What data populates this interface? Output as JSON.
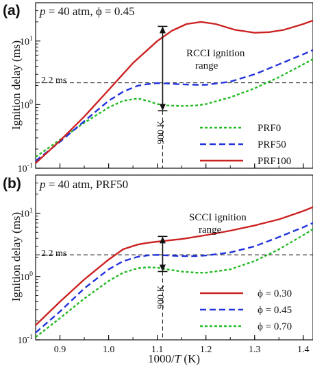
{
  "chart_data": [
    {
      "type": "line",
      "panel_label": "(a)",
      "title": "p = 40 atm, ϕ = 0.45",
      "title_parts": {
        "p": "p",
        "rest": " = 40 atm, ϕ = 0.45"
      },
      "ylabel": "Ignition delay (ms)",
      "y_scale": "log",
      "ylim": [
        0.1,
        40
      ],
      "xlim": [
        0.85,
        1.42
      ],
      "y_ticks": [
        {
          "value": 0.1,
          "mant": "10",
          "exp": "-1"
        },
        {
          "value": 1,
          "mant": "10",
          "exp": "0"
        },
        {
          "value": 10,
          "mant": "10",
          "exp": "1"
        }
      ],
      "hline": {
        "y": 2.2,
        "label": "2.2 ms"
      },
      "vline": {
        "x": 1.111,
        "label": "900 K"
      },
      "annotation": {
        "line1": "RCCI ignition",
        "line2": "range",
        "x": 1.111,
        "y_low": 0.8,
        "y_high": 17
      },
      "legend_position": "lower-right",
      "series": [
        {
          "name": "PRF0",
          "color": "#22bb22",
          "dash": "4,3",
          "x": [
            0.85,
            0.9,
            0.95,
            1.0,
            1.03,
            1.06,
            1.08,
            1.1,
            1.12,
            1.15,
            1.18,
            1.2,
            1.25,
            1.3,
            1.35,
            1.4,
            1.42
          ],
          "y": [
            0.15,
            0.28,
            0.52,
            0.9,
            1.15,
            1.25,
            1.15,
            1.02,
            0.97,
            0.95,
            0.97,
            1.02,
            1.3,
            1.8,
            2.7,
            4.3,
            5.2
          ]
        },
        {
          "name": "PRF50",
          "color": "#2233dd",
          "dash": "9,5",
          "x": [
            0.85,
            0.9,
            0.95,
            1.0,
            1.03,
            1.06,
            1.08,
            1.1,
            1.12,
            1.15,
            1.18,
            1.2,
            1.25,
            1.3,
            1.35,
            1.4,
            1.42
          ],
          "y": [
            0.13,
            0.26,
            0.55,
            1.15,
            1.6,
            1.98,
            2.1,
            2.18,
            2.15,
            2.08,
            2.05,
            2.05,
            2.3,
            3.0,
            4.3,
            6.2,
            7.2
          ]
        },
        {
          "name": "PRF100",
          "color": "#cc2222",
          "dash": "",
          "x": [
            0.85,
            0.9,
            0.95,
            1.0,
            1.05,
            1.1,
            1.13,
            1.16,
            1.19,
            1.22,
            1.26,
            1.3,
            1.33,
            1.36,
            1.4,
            1.42
          ],
          "y": [
            0.12,
            0.27,
            0.65,
            1.7,
            4.5,
            10.0,
            14.5,
            18.5,
            20.0,
            18.5,
            15.0,
            13.5,
            13.8,
            15.0,
            18.5,
            21.0
          ]
        }
      ]
    },
    {
      "type": "line",
      "panel_label": "(b)",
      "title": "p = 40 atm, PRF50",
      "title_parts": {
        "p": "p",
        "rest": " = 40 atm, PRF50"
      },
      "ylabel": "Ignition delay (ms)",
      "xlabel": "1000/T (K)",
      "xlabel_parts": {
        "a": "1000/",
        "t": "T",
        "b": " (K)"
      },
      "y_scale": "log",
      "ylim": [
        0.1,
        40
      ],
      "xlim": [
        0.85,
        1.42
      ],
      "x_ticks": [
        "0.9",
        "1.0",
        "1.1",
        "1.2",
        "1.3",
        "1.4"
      ],
      "x_tick_values": [
        0.9,
        1.0,
        1.1,
        1.2,
        1.3,
        1.4
      ],
      "y_ticks": [
        {
          "value": 0.1,
          "mant": "10",
          "exp": "-1"
        },
        {
          "value": 1,
          "mant": "10",
          "exp": "0"
        },
        {
          "value": 10,
          "mant": "10",
          "exp": "1"
        }
      ],
      "hline": {
        "y": 2.2,
        "label": "2.2 ms"
      },
      "vline": {
        "x": 1.111,
        "label": "900 K"
      },
      "annotation": {
        "line1": "SCCI ignition",
        "line2": "range",
        "x": 1.111,
        "y_low": 1.2,
        "y_high": 4.3
      },
      "legend_position": "lower-right",
      "series": [
        {
          "name": "ϕ = 0.30",
          "color": "#cc2222",
          "dash": "",
          "x": [
            0.85,
            0.9,
            0.95,
            1.0,
            1.03,
            1.06,
            1.08,
            1.1,
            1.12,
            1.15,
            1.2,
            1.25,
            1.3,
            1.35,
            1.4,
            1.42
          ],
          "y": [
            0.17,
            0.4,
            0.9,
            1.85,
            2.7,
            3.2,
            3.4,
            3.55,
            3.7,
            3.9,
            4.5,
            5.3,
            6.4,
            8.0,
            10.8,
            12.5
          ]
        },
        {
          "name": "ϕ = 0.45",
          "color": "#2233dd",
          "dash": "9,5",
          "x": [
            0.85,
            0.9,
            0.95,
            1.0,
            1.03,
            1.06,
            1.08,
            1.1,
            1.12,
            1.15,
            1.18,
            1.2,
            1.25,
            1.3,
            1.35,
            1.4,
            1.42
          ],
          "y": [
            0.13,
            0.28,
            0.65,
            1.3,
            1.75,
            2.05,
            2.15,
            2.2,
            2.15,
            2.1,
            2.1,
            2.15,
            2.4,
            3.0,
            4.2,
            6.0,
            7.0
          ]
        },
        {
          "name": "ϕ = 0.70",
          "color": "#22bb22",
          "dash": "4,3",
          "x": [
            0.85,
            0.9,
            0.95,
            1.0,
            1.03,
            1.06,
            1.08,
            1.1,
            1.12,
            1.15,
            1.18,
            1.2,
            1.25,
            1.3,
            1.35,
            1.4,
            1.42
          ],
          "y": [
            0.11,
            0.22,
            0.45,
            0.85,
            1.15,
            1.35,
            1.4,
            1.38,
            1.3,
            1.2,
            1.15,
            1.15,
            1.3,
            1.75,
            2.7,
            4.5,
            5.6
          ]
        }
      ]
    }
  ]
}
